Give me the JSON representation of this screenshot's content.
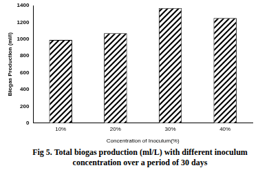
{
  "chart_data": {
    "type": "bar",
    "title": "Fig 5. Total biogas production (ml/L) with different inoculum concentration over a period of 30 days",
    "xlabel": "Concentration of Inoculum(%)",
    "ylabel": "Biogas Production (ml/l)",
    "categories": [
      "10%",
      "20%",
      "30%",
      "40%"
    ],
    "values": [
      990,
      1070,
      1370,
      1250
    ],
    "color": "#000000",
    "ylim": [
      0,
      1400
    ],
    "yticks": [
      0,
      200,
      400,
      600,
      800,
      1000,
      1200,
      1400
    ],
    "grid": false
  }
}
